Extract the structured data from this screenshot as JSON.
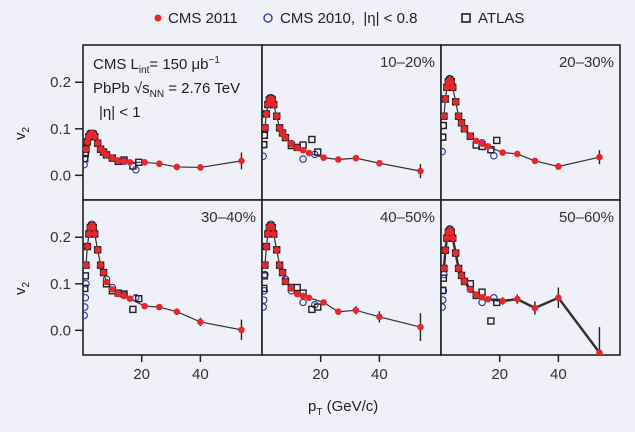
{
  "chart_data": {
    "type": "scatter",
    "layout": "2x3 panels",
    "xlabel_main": "p",
    "xlabel_sub": "T",
    "xlabel_unit": " (GeV/c)",
    "ylabel_main": "v",
    "ylabel_sub": "2",
    "xlim": [
      0,
      61
    ],
    "ylim": [
      -0.053,
      0.28
    ],
    "xticks": [
      "20",
      "40"
    ],
    "xtick_values": [
      20,
      40
    ],
    "yticks": [
      "0.0",
      "0.1",
      "0.2"
    ],
    "ytick_values": [
      0.0,
      0.1,
      0.2
    ],
    "legend": {
      "placement": "top",
      "entries": [
        {
          "label": "CMS 2011",
          "marker": "filled-circle",
          "color": "#e8272a"
        },
        {
          "label": "CMS 2010,  |η| < 0.8",
          "marker": "open-circle",
          "color": "#2b2f9b"
        },
        {
          "label": "ATLAS",
          "marker": "open-square",
          "color": "#222222"
        }
      ]
    },
    "annotation": {
      "line1_a": "CMS L",
      "line1_sub": "int",
      "line1_b": "= 150 μb",
      "line1_sup": "−1",
      "line2_a": "PbPb √s",
      "line2_sub": "NN",
      "line2_b": " = 2.76 TeV",
      "line3": "|η| < 1"
    },
    "panels": [
      {
        "label": "",
        "cms2011": {
          "x": [
            1,
            1.5,
            2,
            2.5,
            3,
            3.5,
            4,
            5,
            6,
            7,
            8,
            10,
            12,
            14,
            16,
            21,
            26,
            32,
            40,
            54
          ],
          "y": [
            0.056,
            0.072,
            0.083,
            0.088,
            0.09,
            0.088,
            0.083,
            0.069,
            0.056,
            0.05,
            0.044,
            0.037,
            0.032,
            0.03,
            0.028,
            0.028,
            0.025,
            0.018,
            0.017,
            0.031
          ],
          "err": [
            0,
            0,
            0,
            0,
            0,
            0,
            0,
            0,
            0,
            0,
            0,
            0,
            0,
            0,
            0,
            0.004,
            0.005,
            0.005,
            0.007,
            0.018
          ]
        },
        "cms2010": {
          "x": [
            0.4,
            0.6,
            0.8,
            1,
            1.5,
            2,
            2.5,
            3,
            4,
            5,
            6,
            8,
            10,
            14,
            18
          ],
          "y": [
            0.023,
            0.036,
            0.047,
            0.056,
            0.072,
            0.083,
            0.088,
            0.09,
            0.083,
            0.069,
            0.056,
            0.044,
            0.037,
            0.03,
            0.012
          ]
        },
        "atlas": {
          "x": [
            0.6,
            0.8,
            1,
            1.5,
            2,
            2.5,
            3,
            3.5,
            4,
            5,
            6,
            7,
            8,
            10,
            12,
            14,
            17,
            19
          ],
          "y": [
            0.036,
            0.047,
            0.056,
            0.072,
            0.083,
            0.088,
            0.09,
            0.088,
            0.083,
            0.069,
            0.056,
            0.05,
            0.044,
            0.037,
            0.03,
            0.033,
            0.02,
            0.028
          ]
        }
      },
      {
        "label": "10–20%",
        "cms2011": {
          "x": [
            1,
            1.5,
            2,
            2.5,
            3,
            3.5,
            4,
            5,
            6,
            7,
            8,
            10,
            12,
            14,
            16,
            21,
            26,
            32,
            40,
            54
          ],
          "y": [
            0.102,
            0.132,
            0.152,
            0.162,
            0.165,
            0.162,
            0.152,
            0.127,
            0.102,
            0.091,
            0.081,
            0.068,
            0.059,
            0.054,
            0.048,
            0.038,
            0.034,
            0.037,
            0.026,
            0.009
          ],
          "err": [
            0,
            0,
            0,
            0,
            0,
            0,
            0,
            0,
            0,
            0,
            0,
            0,
            0,
            0,
            0,
            0.004,
            0.005,
            0.005,
            0.007,
            0.015
          ]
        },
        "cms2010": {
          "x": [
            0.4,
            0.6,
            0.8,
            1,
            1.5,
            2,
            2.5,
            3,
            4,
            5,
            6,
            8,
            10,
            14,
            18
          ],
          "y": [
            0.041,
            0.066,
            0.086,
            0.102,
            0.132,
            0.152,
            0.162,
            0.167,
            0.152,
            0.127,
            0.102,
            0.081,
            0.068,
            0.035,
            0.045
          ]
        },
        "atlas": {
          "x": [
            0.6,
            0.8,
            1,
            1.5,
            2,
            2.5,
            3,
            3.5,
            4,
            5,
            6,
            7,
            8,
            10,
            12,
            14,
            17,
            19
          ],
          "y": [
            0.066,
            0.086,
            0.102,
            0.132,
            0.152,
            0.162,
            0.165,
            0.162,
            0.152,
            0.127,
            0.102,
            0.091,
            0.081,
            0.064,
            0.06,
            0.065,
            0.077,
            0.05
          ]
        }
      },
      {
        "label": "20–30%",
        "cms2011": {
          "x": [
            1,
            1.5,
            2,
            2.5,
            3,
            3.5,
            4,
            5,
            6,
            7,
            8,
            10,
            12,
            14,
            16,
            21,
            26,
            32,
            40,
            54
          ],
          "y": [
            0.127,
            0.164,
            0.189,
            0.201,
            0.205,
            0.201,
            0.189,
            0.158,
            0.127,
            0.113,
            0.1,
            0.084,
            0.074,
            0.068,
            0.062,
            0.049,
            0.046,
            0.031,
            0.019,
            0.039
          ],
          "err": [
            0,
            0,
            0,
            0,
            0,
            0,
            0,
            0,
            0,
            0,
            0,
            0,
            0,
            0,
            0,
            0.004,
            0.005,
            0.005,
            0.007,
            0.015
          ]
        },
        "cms2010": {
          "x": [
            0.4,
            0.6,
            0.8,
            1,
            1.5,
            2,
            2.5,
            3,
            4,
            5,
            6,
            8,
            10,
            14,
            18
          ],
          "y": [
            0.051,
            0.082,
            0.107,
            0.127,
            0.164,
            0.189,
            0.201,
            0.208,
            0.189,
            0.158,
            0.127,
            0.1,
            0.084,
            0.07,
            0.042
          ]
        },
        "atlas": {
          "x": [
            0.6,
            0.8,
            1,
            1.5,
            2,
            2.5,
            3,
            3.5,
            4,
            5,
            6,
            7,
            8,
            10,
            12,
            14,
            17,
            19
          ],
          "y": [
            0.082,
            0.107,
            0.127,
            0.164,
            0.189,
            0.201,
            0.205,
            0.201,
            0.189,
            0.158,
            0.127,
            0.113,
            0.1,
            0.084,
            0.065,
            0.062,
            0.055,
            0.075
          ]
        }
      },
      {
        "label": "30–40%",
        "cms2011": {
          "x": [
            1,
            1.5,
            2,
            2.5,
            3,
            3.5,
            4,
            5,
            6,
            7,
            8,
            10,
            12,
            14,
            16,
            21,
            26,
            32,
            40,
            54
          ],
          "y": [
            0.14,
            0.18,
            0.207,
            0.221,
            0.225,
            0.221,
            0.207,
            0.173,
            0.14,
            0.124,
            0.104,
            0.088,
            0.078,
            0.074,
            0.068,
            0.052,
            0.05,
            0.04,
            0.018,
            0.001
          ],
          "err": [
            0,
            0,
            0,
            0,
            0,
            0,
            0,
            0,
            0,
            0,
            0,
            0,
            0,
            0,
            0,
            0.004,
            0.005,
            0.007,
            0.009,
            0.022
          ]
        },
        "cms2010": {
          "x": [
            0.4,
            0.6,
            0.8,
            1,
            1.5,
            2,
            2.5,
            3,
            4,
            5,
            6,
            8,
            10,
            14,
            18
          ],
          "y": [
            0.032,
            0.05,
            0.07,
            0.1,
            0.18,
            0.207,
            0.221,
            0.228,
            0.207,
            0.173,
            0.14,
            0.11,
            0.092,
            0.075,
            0.07
          ]
        },
        "atlas": {
          "x": [
            0.6,
            0.8,
            1,
            1.5,
            2,
            2.5,
            3,
            3.5,
            4,
            5,
            6,
            7,
            8,
            10,
            12,
            14,
            17,
            19
          ],
          "y": [
            0.09,
            0.117,
            0.14,
            0.18,
            0.207,
            0.221,
            0.225,
            0.221,
            0.207,
            0.173,
            0.14,
            0.124,
            0.1,
            0.085,
            0.08,
            0.078,
            0.045,
            0.068
          ]
        }
      },
      {
        "label": "40–50%",
        "cms2011": {
          "x": [
            1,
            1.5,
            2,
            2.5,
            3,
            3.5,
            4,
            5,
            6,
            7,
            8,
            10,
            12,
            14,
            16,
            21,
            26,
            32,
            40,
            54
          ],
          "y": [
            0.14,
            0.18,
            0.207,
            0.221,
            0.225,
            0.221,
            0.207,
            0.173,
            0.14,
            0.124,
            0.105,
            0.09,
            0.078,
            0.074,
            0.07,
            0.06,
            0.04,
            0.043,
            0.029,
            0.007
          ],
          "err": [
            0,
            0,
            0,
            0,
            0,
            0,
            0,
            0,
            0,
            0,
            0,
            0,
            0,
            0,
            0,
            0.005,
            0.006,
            0.009,
            0.012,
            0.03
          ]
        },
        "cms2010": {
          "x": [
            0.4,
            0.6,
            0.8,
            1,
            1.5,
            2,
            2.5,
            3,
            4,
            5,
            6,
            8,
            10,
            14,
            18
          ],
          "y": [
            0.05,
            0.065,
            0.085,
            0.12,
            0.18,
            0.207,
            0.221,
            0.228,
            0.207,
            0.173,
            0.14,
            0.11,
            0.085,
            0.06,
            0.055
          ]
        },
        "atlas": {
          "x": [
            0.6,
            0.8,
            1,
            1.5,
            2,
            2.5,
            3,
            3.5,
            4,
            5,
            6,
            7,
            8,
            10,
            12,
            14,
            17,
            19
          ],
          "y": [
            0.09,
            0.117,
            0.14,
            0.18,
            0.207,
            0.221,
            0.225,
            0.221,
            0.207,
            0.173,
            0.14,
            0.124,
            0.105,
            0.092,
            0.092,
            0.08,
            0.045,
            0.05
          ]
        }
      },
      {
        "label": "50–60%",
        "cms2011": {
          "x": [
            1,
            1.5,
            2,
            2.5,
            3,
            3.5,
            4,
            5,
            6,
            7,
            8,
            10,
            12,
            14,
            16,
            21,
            26,
            32,
            40,
            54
          ],
          "y": [
            0.133,
            0.172,
            0.198,
            0.211,
            0.215,
            0.211,
            0.198,
            0.166,
            0.133,
            0.118,
            0.105,
            0.088,
            0.077,
            0.071,
            0.067,
            0.063,
            0.067,
            0.048,
            0.07,
            -0.048
          ],
          "err": [
            0,
            0,
            0,
            0,
            0,
            0,
            0,
            0,
            0,
            0,
            0,
            0,
            0,
            0,
            0,
            0.008,
            0.01,
            0.014,
            0.022,
            0.055
          ]
        },
        "cms2010": {
          "x": [
            0.4,
            0.6,
            0.8,
            1,
            1.5,
            2,
            2.5,
            3,
            4,
            5,
            6,
            8,
            10,
            14,
            18
          ],
          "y": [
            0.05,
            0.065,
            0.085,
            0.12,
            0.172,
            0.198,
            0.211,
            0.218,
            0.198,
            0.166,
            0.133,
            0.105,
            0.088,
            0.06,
            0.07
          ]
        },
        "atlas": {
          "x": [
            0.6,
            0.8,
            1,
            1.5,
            2,
            2.5,
            3,
            3.5,
            4,
            5,
            6,
            7,
            8,
            10,
            12,
            14,
            17,
            19
          ],
          "y": [
            0.086,
            0.112,
            0.133,
            0.172,
            0.198,
            0.211,
            0.215,
            0.211,
            0.198,
            0.166,
            0.133,
            0.118,
            0.105,
            0.1,
            0.075,
            0.082,
            0.02,
            0.06
          ]
        }
      }
    ]
  }
}
